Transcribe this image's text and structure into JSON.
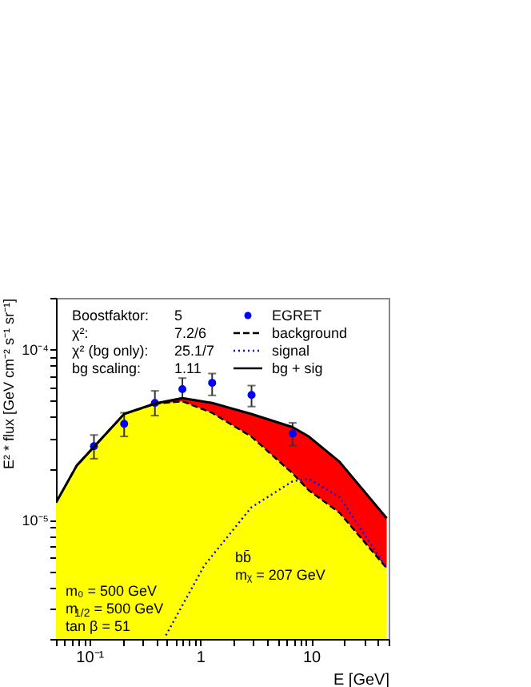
{
  "chart_data": {
    "type": "line",
    "xlabel": "E [GeV]",
    "ylabel": "E² * flux [GeV cm⁻² s⁻¹ sr⁻¹]",
    "colors": [
      "#ffff00",
      "#ff0000"
    ],
    "log": "xy",
    "grid": false,
    "legend": "top right",
    "xlim": [
      0.05,
      50
    ],
    "ylim": [
      2e-06,
      0.0002
    ],
    "xticks": [
      {
        "value": 0.05,
        "label": null
      },
      {
        "value": 0.06,
        "label": null
      },
      {
        "value": 0.07,
        "label": null
      },
      {
        "value": 0.08,
        "label": null
      },
      {
        "value": 0.09,
        "label": null
      },
      {
        "value": 0.1,
        "label": "10⁻¹"
      },
      {
        "value": 0.2,
        "label": null
      },
      {
        "value": 0.3,
        "label": null
      },
      {
        "value": 0.4,
        "label": null
      },
      {
        "value": 0.5,
        "label": null
      },
      {
        "value": 0.6,
        "label": null
      },
      {
        "value": 0.7,
        "label": null
      },
      {
        "value": 0.8,
        "label": null
      },
      {
        "value": 0.9,
        "label": null
      },
      {
        "value": 1,
        "label": "1"
      },
      {
        "value": 2,
        "label": null
      },
      {
        "value": 3,
        "label": null
      },
      {
        "value": 4,
        "label": null
      },
      {
        "value": 5,
        "label": null
      },
      {
        "value": 6,
        "label": null
      },
      {
        "value": 7,
        "label": null
      },
      {
        "value": 8,
        "label": null
      },
      {
        "value": 9,
        "label": null
      },
      {
        "value": 10,
        "label": "10"
      },
      {
        "value": 20,
        "label": null
      },
      {
        "value": 30,
        "label": null
      },
      {
        "value": 40,
        "label": null
      },
      {
        "value": 50,
        "label": null
      }
    ],
    "yticks": [
      {
        "value": 2e-06,
        "label": null
      },
      {
        "value": 3e-06,
        "label": null
      },
      {
        "value": 4e-06,
        "label": null
      },
      {
        "value": 5e-06,
        "label": null
      },
      {
        "value": 6e-06,
        "label": null
      },
      {
        "value": 7e-06,
        "label": null
      },
      {
        "value": 8e-06,
        "label": null
      },
      {
        "value": 9e-06,
        "label": null
      },
      {
        "value": 1e-05,
        "label": "10⁻⁵"
      },
      {
        "value": 2e-05,
        "label": null
      },
      {
        "value": 3e-05,
        "label": null
      },
      {
        "value": 4e-05,
        "label": null
      },
      {
        "value": 5e-05,
        "label": null
      },
      {
        "value": 6e-05,
        "label": null
      },
      {
        "value": 7e-05,
        "label": null
      },
      {
        "value": 8e-05,
        "label": null
      },
      {
        "value": 9e-05,
        "label": null
      },
      {
        "value": 0.0001,
        "label": "10⁻⁴"
      },
      {
        "value": 0.0002,
        "label": null
      }
    ],
    "series": [
      {
        "name": "EGRET",
        "type": "scatter",
        "marker": "circle",
        "color": "#0000ff",
        "x": [
          0.11,
          0.206,
          0.39,
          0.69,
          1.28,
          2.9,
          6.8
        ],
        "values": [
          2.7e-05,
          3.65e-05,
          4.84e-05,
          5.83e-05,
          6.35e-05,
          5.39e-05,
          3.2e-05
        ],
        "errors": [
          [
            2.28e-05,
            3.14e-05
          ],
          [
            3.08e-05,
            4.24e-05
          ],
          [
            4.08e-05,
            5.7e-05
          ],
          [
            5.13e-05,
            6.77e-05
          ],
          [
            5.36e-05,
            7.2e-05
          ],
          [
            4.61e-05,
            6.12e-05
          ],
          [
            2.72e-05,
            3.7e-05
          ]
        ]
      },
      {
        "name": "background",
        "type": "line",
        "color": "#000000",
        "line_style": "dashed",
        "x": [
          0.05,
          0.077,
          0.206,
          0.39,
          0.69,
          1.28,
          2.88,
          6.8,
          9.5,
          18,
          48
        ],
        "values": [
          1.26e-05,
          2.08e-05,
          4.17e-05,
          4.78e-05,
          4.95e-05,
          4.23e-05,
          3.08e-05,
          1.87e-05,
          1.49e-05,
          1.1e-05,
          5.2e-06
        ],
        "lower": [
          2e-06,
          2e-06,
          2e-06,
          2e-06,
          2e-06,
          2e-06,
          2e-06,
          2e-06,
          2e-06,
          2e-06,
          2e-06
        ],
        "upper": [
          1.26e-05,
          2.08e-05,
          4.17e-05,
          4.78e-05,
          4.95e-05,
          4.23e-05,
          3.08e-05,
          1.87e-05,
          1.49e-05,
          1.1e-05,
          5.2e-06
        ]
      },
      {
        "name": "signal",
        "type": "line",
        "color": "#0000ff",
        "line_style": "dotted",
        "x": [
          0.49,
          1.09,
          2.88,
          6.8,
          9.5,
          18,
          43,
          48
        ],
        "values": [
          2.1e-06,
          5.4e-06,
          1.18e-05,
          1.68e-05,
          1.74e-05,
          1.36e-05,
          5.8e-06,
          5.2e-06
        ]
      },
      {
        "name": "bg + sig",
        "type": "line",
        "color": "#000000",
        "line_style": "solid",
        "x": [
          0.05,
          0.077,
          0.206,
          0.39,
          0.69,
          1.28,
          2.88,
          6.8,
          9.5,
          18,
          48
        ],
        "values": [
          1.26e-05,
          2.08e-05,
          4.17e-05,
          4.8e-05,
          5.16e-05,
          4.84e-05,
          4.17e-05,
          3.49e-05,
          3.08e-05,
          2.19e-05,
          1.02e-05
        ],
        "lower": [
          1.26e-05,
          2.08e-05,
          4.17e-05,
          4.78e-05,
          4.95e-05,
          4.23e-05,
          3.08e-05,
          1.87e-05,
          1.49e-05,
          1.1e-05,
          5.2e-06
        ],
        "upper": [
          1.26e-05,
          2.08e-05,
          4.17e-05,
          4.8e-05,
          5.16e-05,
          4.84e-05,
          4.17e-05,
          3.49e-05,
          3.08e-05,
          2.19e-05,
          1.02e-05
        ]
      }
    ],
    "annotations": [
      "Boostfaktor:",
      "5",
      "χ²:",
      "7.2/6",
      "χ² (bg only):",
      "25.1/7",
      "bg scaling:",
      "1.11",
      "m₀ = 500 GeV",
      "m$_{1/2}$ = 500 GeV",
      "tan β = 51",
      "bb̄",
      "mᵪ = 207 GeV"
    ]
  }
}
